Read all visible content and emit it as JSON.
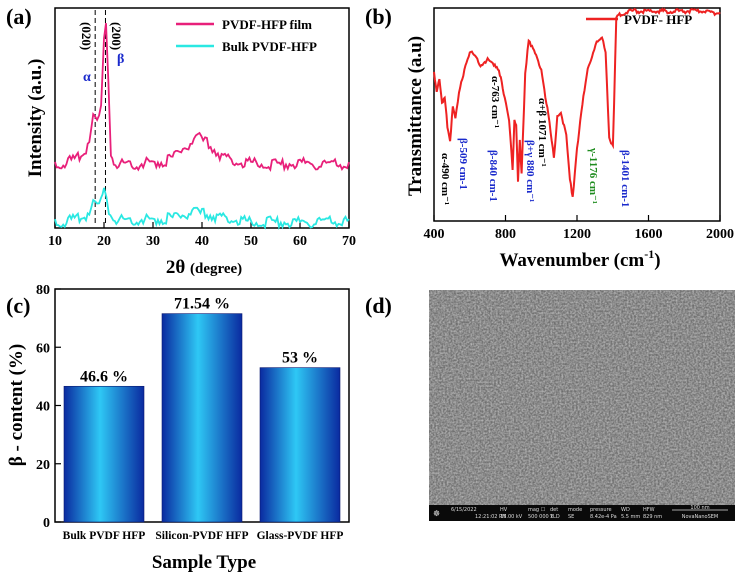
{
  "chart_data": [
    {
      "panel": "(a)",
      "type": "line",
      "xlabel": "2θ",
      "xlabel_unit": "(degree)",
      "ylabel": "Intensity (a.u.)",
      "xlim": [
        10,
        70
      ],
      "xticks": [
        "10",
        "20",
        "30",
        "40",
        "50",
        "60",
        "70"
      ],
      "series": [
        {
          "name": "PVDF-HFP film",
          "color": "#e8207a",
          "x": [
            10,
            12,
            14,
            16,
            17,
            17.8,
            18.6,
            19.4,
            20,
            20.4,
            20.9,
            21.4,
            22,
            23,
            25,
            27,
            29,
            31,
            33,
            35,
            36.5,
            38,
            39.5,
            41,
            42.5,
            44,
            46,
            48,
            50,
            55,
            60,
            65,
            70
          ],
          "y": [
            0.3,
            0.31,
            0.32,
            0.35,
            0.42,
            0.52,
            0.48,
            0.55,
            0.85,
            0.95,
            0.7,
            0.35,
            0.31,
            0.3,
            0.31,
            0.3,
            0.31,
            0.31,
            0.32,
            0.35,
            0.38,
            0.4,
            0.42,
            0.4,
            0.37,
            0.34,
            0.32,
            0.31,
            0.31,
            0.3,
            0.31,
            0.3,
            0.3
          ]
        },
        {
          "name": "Bulk PVDF-HFP",
          "color": "#2ae8e2",
          "x": [
            10,
            12,
            14,
            16,
            17,
            17.8,
            18.6,
            19.4,
            20,
            20.5,
            21,
            21.6,
            22.5,
            25,
            28,
            31,
            34,
            36,
            38,
            40,
            42,
            44,
            47,
            50,
            55,
            60,
            65,
            70
          ],
          "y": [
            0.04,
            0.04,
            0.05,
            0.06,
            0.09,
            0.13,
            0.1,
            0.13,
            0.17,
            0.16,
            0.1,
            0.06,
            0.05,
            0.05,
            0.05,
            0.05,
            0.06,
            0.07,
            0.08,
            0.08,
            0.07,
            0.06,
            0.05,
            0.04,
            0.04,
            0.04,
            0.04,
            0.04
          ]
        }
      ],
      "vlines_x": [
        18.2,
        20.3
      ],
      "annotations": [
        "(020)",
        "(200)",
        "α",
        "β"
      ]
    },
    {
      "panel": "(b)",
      "type": "line",
      "xlabel": "Wavenumber (cm",
      "xlabel_sup": "-1",
      "xlabel_close": ")",
      "ylabel": "Transmittance (a.u)",
      "xlim": [
        400,
        2000
      ],
      "xticks": [
        "400",
        "800",
        "1200",
        "1600",
        "2000"
      ],
      "series": [
        {
          "name": "PVDF- HFP",
          "color": "#ee2222",
          "x": [
            400,
            415,
            430,
            445,
            460,
            475,
            490,
            505,
            520,
            540,
            570,
            600,
            630,
            660,
            700,
            740,
            763,
            790,
            820,
            840,
            850,
            860,
            870,
            880,
            890,
            910,
            930,
            960,
            1000,
            1040,
            1071,
            1090,
            1110,
            1140,
            1160,
            1176,
            1200,
            1230,
            1260,
            1290,
            1310,
            1340,
            1360,
            1380,
            1401,
            1420,
            1450,
            1500,
            1600,
            1700,
            1800,
            1900,
            2000
          ],
          "y": [
            0.7,
            0.62,
            0.68,
            0.55,
            0.58,
            0.45,
            0.38,
            0.55,
            0.48,
            0.6,
            0.72,
            0.8,
            0.78,
            0.74,
            0.76,
            0.74,
            0.72,
            0.6,
            0.48,
            0.25,
            0.48,
            0.45,
            0.18,
            0.38,
            0.22,
            0.7,
            0.86,
            0.8,
            0.72,
            0.5,
            0.3,
            0.5,
            0.52,
            0.4,
            0.2,
            0.12,
            0.35,
            0.55,
            0.72,
            0.8,
            0.84,
            0.86,
            0.8,
            0.4,
            0.35,
            0.96,
            0.98,
            0.99,
            0.99,
            0.99,
            0.99,
            0.99,
            0.98
          ]
        }
      ],
      "annotations": [
        {
          "text": "α-490 cm⁻¹",
          "color": "#000000"
        },
        {
          "text": "β-509 cm-1",
          "color": "#1a2acc"
        },
        {
          "text": "α-763 cm⁻¹",
          "color": "#000000"
        },
        {
          "text": "β-840 cm-1",
          "color": "#1a2acc"
        },
        {
          "text": "β+γ 880 cm⁻¹",
          "color": "#1a2acc"
        },
        {
          "text": "α+β 1071 cm⁻¹",
          "color": "#000000"
        },
        {
          "text": "γ-1176 cm⁻¹",
          "color": "#1e8c1e"
        },
        {
          "text": "β-1401 cm-1",
          "color": "#1a2acc"
        }
      ]
    },
    {
      "panel": "(c)",
      "type": "bar",
      "categories": [
        "Bulk PVDF HFP",
        "Silicon-PVDF HFP",
        "Glass-PVDF HFP"
      ],
      "values": [
        46.6,
        71.54,
        53
      ],
      "data_labels": [
        "46.6 %",
        "71.54 %",
        "53 %"
      ],
      "xlabel": "Sample Type",
      "ylabel": "β - content (%)",
      "ylim": [
        0,
        80
      ],
      "yticks": [
        "0",
        "20",
        "40",
        "60",
        "80"
      ]
    }
  ],
  "sem_panel": {
    "label": "(d)",
    "databar": [
      {
        "head": "",
        "val": "6/15/2022"
      },
      {
        "head": "",
        "val": "12:21:02 PM"
      },
      {
        "head": "HV",
        "val": "15.00 kV"
      },
      {
        "head": "mag ☐",
        "val": "500 000 x"
      },
      {
        "head": "det",
        "val": "TLD"
      },
      {
        "head": "mode",
        "val": "SE"
      },
      {
        "head": "pressure",
        "val": "8.42e-4 Pa"
      },
      {
        "head": "WD",
        "val": "5.5 mm"
      },
      {
        "head": "HFW",
        "val": "829 nm"
      }
    ],
    "scale_label": "100 nm",
    "instrument": "NovaNanoSEM"
  }
}
